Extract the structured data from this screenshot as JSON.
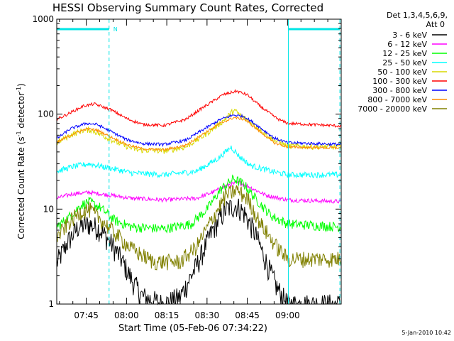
{
  "chart_data": {
    "type": "line",
    "title": "HESSI Observing Summary Count Rates, Corrected",
    "ylabel_main": "Corrected Count Rate (s",
    "ylabel_sup1": "-1",
    "ylabel_mid": " detector",
    "ylabel_sup2": "-1",
    "ylabel_end": ")",
    "xlabel": "Start Time (05-Feb-06 07:34:22)",
    "timestamp": "5-Jan-2010 10:42",
    "y_scale": "log",
    "ylim": [
      1,
      1000
    ],
    "xlim_minutes_after_0734": [
      0,
      106
    ],
    "yticks": [
      {
        "value": 1,
        "label": "1"
      },
      {
        "value": 10,
        "label": "10"
      },
      {
        "value": 100,
        "label": "100"
      },
      {
        "value": 1000,
        "label": "1000"
      }
    ],
    "xticks": [
      {
        "minute": 11,
        "label": "07:45"
      },
      {
        "minute": 26,
        "label": "08:00"
      },
      {
        "minute": 41,
        "label": "08:15"
      },
      {
        "minute": 56,
        "label": "08:30"
      },
      {
        "minute": 71,
        "label": "08:45"
      },
      {
        "minute": 86,
        "label": "09:00"
      }
    ],
    "legend": {
      "header1": "Det 1,3,4,5,6,9,",
      "header2": "Att 0",
      "placement": "right"
    },
    "flag_bars": [
      {
        "label": "N",
        "start_minute": 0,
        "end_minute": 19.5
      },
      {
        "label": "",
        "start_minute": 86.3,
        "end_minute": 105.5
      }
    ],
    "vertical_lines": [
      {
        "minute": 0,
        "style": "solid"
      },
      {
        "minute": 19.5,
        "style": "dashed"
      },
      {
        "minute": 86.3,
        "style": "solid"
      },
      {
        "minute": 105.5,
        "style": "dashed"
      }
    ],
    "series": [
      {
        "name": "3 - 6 keV",
        "color": "#000000",
        "noise": 0.28,
        "floor": 1,
        "points": [
          [
            0,
            2.7
          ],
          [
            4,
            4.5
          ],
          [
            8,
            6.5
          ],
          [
            12,
            7
          ],
          [
            16,
            6.2
          ],
          [
            20,
            4.5
          ],
          [
            24,
            3
          ],
          [
            28,
            1.8
          ],
          [
            32,
            1.2
          ],
          [
            40,
            1
          ],
          [
            46,
            1.2
          ],
          [
            52,
            2.5
          ],
          [
            58,
            6
          ],
          [
            63,
            10
          ],
          [
            67,
            11
          ],
          [
            70,
            9
          ],
          [
            74,
            5.5
          ],
          [
            78,
            2.8
          ],
          [
            82,
            1.5
          ],
          [
            86,
            1
          ],
          [
            106,
            1
          ]
        ]
      },
      {
        "name": "6 - 12 keV",
        "color": "#ff00ff",
        "noise": 0.05,
        "floor": 1,
        "points": [
          [
            0,
            13
          ],
          [
            6,
            14.5
          ],
          [
            12,
            15
          ],
          [
            20,
            14
          ],
          [
            28,
            13
          ],
          [
            40,
            12.5
          ],
          [
            52,
            13
          ],
          [
            58,
            15
          ],
          [
            64,
            18
          ],
          [
            68,
            19
          ],
          [
            72,
            17
          ],
          [
            78,
            14
          ],
          [
            86,
            12.5
          ],
          [
            106,
            12
          ]
        ]
      },
      {
        "name": "12 - 25 keV",
        "color": "#00ff00",
        "noise": 0.12,
        "floor": 1,
        "points": [
          [
            0,
            6.5
          ],
          [
            4,
            8
          ],
          [
            9,
            11
          ],
          [
            12,
            12
          ],
          [
            16,
            10.5
          ],
          [
            22,
            7.5
          ],
          [
            28,
            6.5
          ],
          [
            40,
            6.2
          ],
          [
            50,
            7
          ],
          [
            56,
            10
          ],
          [
            61,
            16
          ],
          [
            66,
            21
          ],
          [
            70,
            18
          ],
          [
            74,
            13
          ],
          [
            80,
            8.5
          ],
          [
            86,
            7
          ],
          [
            106,
            6.5
          ]
        ]
      },
      {
        "name": "25 - 50 keV",
        "color": "#00ffff",
        "noise": 0.07,
        "floor": 1,
        "points": [
          [
            0,
            25
          ],
          [
            6,
            28
          ],
          [
            12,
            30
          ],
          [
            20,
            27
          ],
          [
            28,
            24
          ],
          [
            40,
            23
          ],
          [
            52,
            25
          ],
          [
            60,
            34
          ],
          [
            65,
            45
          ],
          [
            68,
            36
          ],
          [
            72,
            29
          ],
          [
            80,
            25
          ],
          [
            86,
            23
          ],
          [
            106,
            23
          ]
        ]
      },
      {
        "name": "50 - 100 keV",
        "color": "#d9d900",
        "noise": 0.07,
        "floor": 1,
        "points": [
          [
            0,
            50
          ],
          [
            5,
            60
          ],
          [
            10,
            68
          ],
          [
            13,
            68
          ],
          [
            18,
            58
          ],
          [
            24,
            48
          ],
          [
            30,
            42
          ],
          [
            40,
            41
          ],
          [
            48,
            45
          ],
          [
            55,
            60
          ],
          [
            62,
            85
          ],
          [
            66,
            110
          ],
          [
            69,
            95
          ],
          [
            74,
            75
          ],
          [
            80,
            55
          ],
          [
            86,
            46
          ],
          [
            106,
            45
          ]
        ]
      },
      {
        "name": "100 - 300 keV",
        "color": "#ff0000",
        "noise": 0.035,
        "floor": 1,
        "points": [
          [
            0,
            88
          ],
          [
            4,
            100
          ],
          [
            10,
            122
          ],
          [
            14,
            128
          ],
          [
            20,
            112
          ],
          [
            26,
            90
          ],
          [
            32,
            78
          ],
          [
            40,
            76
          ],
          [
            48,
            88
          ],
          [
            55,
            120
          ],
          [
            62,
            160
          ],
          [
            67,
            175
          ],
          [
            71,
            160
          ],
          [
            76,
            120
          ],
          [
            82,
            90
          ],
          [
            86,
            80
          ],
          [
            106,
            75
          ]
        ]
      },
      {
        "name": "300 - 800 keV",
        "color": "#0000ff",
        "noise": 0.035,
        "floor": 1,
        "points": [
          [
            0,
            55
          ],
          [
            5,
            70
          ],
          [
            11,
            80
          ],
          [
            15,
            78
          ],
          [
            20,
            66
          ],
          [
            26,
            54
          ],
          [
            32,
            49
          ],
          [
            40,
            48
          ],
          [
            48,
            53
          ],
          [
            55,
            70
          ],
          [
            61,
            88
          ],
          [
            66,
            98
          ],
          [
            70,
            94
          ],
          [
            75,
            75
          ],
          [
            81,
            56
          ],
          [
            86,
            50
          ],
          [
            106,
            48
          ]
        ]
      },
      {
        "name": "800 - 7000 keV",
        "color": "#ff8c00",
        "noise": 0.03,
        "floor": 1,
        "points": [
          [
            0,
            50
          ],
          [
            5,
            60
          ],
          [
            11,
            70
          ],
          [
            15,
            68
          ],
          [
            20,
            58
          ],
          [
            26,
            48
          ],
          [
            32,
            43
          ],
          [
            40,
            42
          ],
          [
            48,
            47
          ],
          [
            55,
            63
          ],
          [
            61,
            80
          ],
          [
            66,
            92
          ],
          [
            70,
            88
          ],
          [
            75,
            68
          ],
          [
            81,
            50
          ],
          [
            86,
            45
          ],
          [
            106,
            44
          ]
        ]
      },
      {
        "name": "7000 - 20000 keV",
        "color": "#808000",
        "noise": 0.2,
        "floor": 1.5,
        "points": [
          [
            0,
            5
          ],
          [
            4,
            7
          ],
          [
            9,
            9.5
          ],
          [
            12,
            10
          ],
          [
            16,
            8
          ],
          [
            22,
            5.5
          ],
          [
            28,
            3.8
          ],
          [
            36,
            2.8
          ],
          [
            46,
            2.8
          ],
          [
            52,
            4
          ],
          [
            58,
            8
          ],
          [
            63,
            14
          ],
          [
            67,
            16
          ],
          [
            71,
            13
          ],
          [
            76,
            7
          ],
          [
            82,
            4
          ],
          [
            86,
            3
          ],
          [
            106,
            3
          ]
        ]
      }
    ]
  }
}
